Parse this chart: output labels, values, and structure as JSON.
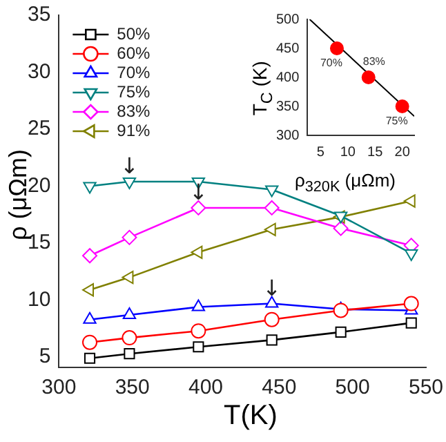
{
  "chart_data": [
    {
      "type": "line",
      "xlabel": "T(K)",
      "ylabel": "ρ (μΩm)",
      "xlim": [
        300,
        550
      ],
      "xticks": [
        300,
        350,
        400,
        450,
        500,
        550
      ],
      "ylim": [
        4.1,
        35
      ],
      "yticks": [
        5,
        10,
        15,
        20,
        25,
        30,
        35
      ],
      "legend": "top left",
      "grid": false,
      "x": [
        321,
        348,
        395,
        445,
        492,
        540
      ],
      "series": [
        {
          "name": "50%",
          "color": "#000000",
          "marker": "square",
          "values": [
            4.9,
            5.3,
            5.9,
            6.5,
            7.2,
            8.0
          ]
        },
        {
          "name": "60%",
          "color": "#ff0000",
          "marker": "circle",
          "values": [
            6.3,
            6.7,
            7.3,
            8.3,
            9.1,
            9.7
          ]
        },
        {
          "name": "70%",
          "color": "#0000ff",
          "marker": "triangle",
          "values": [
            8.3,
            8.7,
            9.4,
            9.7,
            9.2,
            9.1
          ]
        },
        {
          "name": "75%",
          "color": "#008080",
          "marker": "triangle-down",
          "values": [
            20.0,
            20.4,
            20.4,
            19.7,
            17.4,
            14.1
          ]
        },
        {
          "name": "83%",
          "color": "#ff00ff",
          "marker": "diamond",
          "values": [
            13.9,
            15.5,
            18.1,
            18.1,
            16.3,
            14.8
          ]
        },
        {
          "name": "91%",
          "color": "#808000",
          "marker": "triangle-left",
          "values": [
            10.9,
            12.0,
            14.2,
            16.2,
            17.3,
            18.7
          ]
        }
      ],
      "annotations": [
        {
          "text": "↓",
          "x": 348,
          "y": 20.4
        },
        {
          "text": "↓",
          "x": 395,
          "y": 18.1
        },
        {
          "text": "↓",
          "x": 445,
          "y": 9.7
        }
      ]
    },
    {
      "type": "scatter",
      "xlabel": "ρ$_{320K}$ (μΩm)",
      "ylabel": "T$_{C}$ (K)",
      "xlim": [
        2.6,
        22.2
      ],
      "xticks": [
        5,
        10,
        15,
        20
      ],
      "ylim": [
        300,
        500
      ],
      "yticks": [
        300,
        350,
        400,
        450,
        500
      ],
      "grid": false,
      "legend": false,
      "series": [
        {
          "color": "#ff0000",
          "marker": "circle",
          "x": [
            8,
            13.8,
            20
          ],
          "values": [
            450,
            400,
            350
          ]
        },
        {
          "type": "line",
          "color": "#000000",
          "marker": "none",
          "x": [
            3,
            22.2
          ],
          "values": [
            500,
            333
          ]
        }
      ],
      "annotations": [
        {
          "text": "70%",
          "x": 8,
          "y": 450
        },
        {
          "text": "83%",
          "x": 13.8,
          "y": 400
        },
        {
          "text": "75%",
          "x": 20,
          "y": 350
        }
      ]
    }
  ]
}
